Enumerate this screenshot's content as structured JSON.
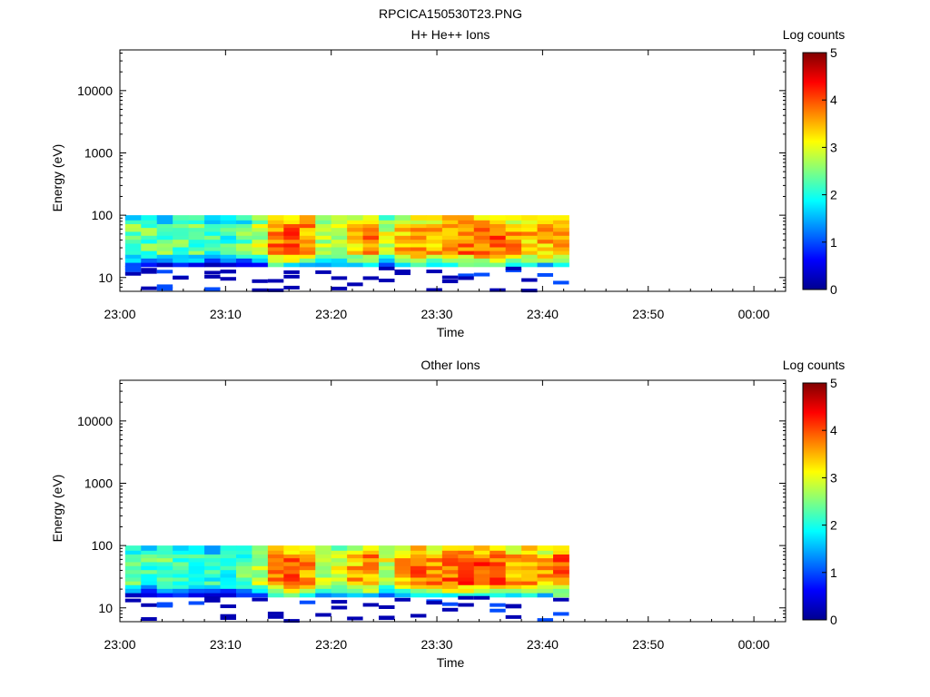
{
  "figure_title": "RPCICA150530T23.PNG",
  "colors": {
    "colormap": [
      "#00008f",
      "#0000ff",
      "#0080ff",
      "#00ffff",
      "#80ff80",
      "#ffff00",
      "#ff8000",
      "#ff0000",
      "#800000"
    ],
    "axis": "#000000",
    "background": "#ffffff"
  },
  "chart_data": [
    {
      "type": "heatmap",
      "title": "H+ He++ Ions",
      "xlabel": "Time",
      "ylabel": "Energy (eV)",
      "x_ticks": [
        "23:00",
        "23:10",
        "23:20",
        "23:30",
        "23:40",
        "23:50",
        "00:00"
      ],
      "x_range_minutes": [
        0,
        63
      ],
      "y_scale": "log",
      "y_ticks": [
        "10",
        "100",
        "1000",
        "10000"
      ],
      "ylim": [
        6,
        45000
      ],
      "colorbar": {
        "label": "Log counts",
        "ticks": [
          "0",
          "1",
          "2",
          "3",
          "4",
          "5"
        ],
        "range": [
          0,
          5
        ]
      },
      "data_span_minutes": [
        0.5,
        42.5
      ],
      "time_bins": 28,
      "energy_levels_eV": [
        16,
        19,
        22,
        25,
        29,
        33,
        38,
        44,
        51,
        59,
        68,
        78,
        90
      ],
      "column_mean_log_counts": [
        2.3,
        2.2,
        2.2,
        2.2,
        2.2,
        2.0,
        2.0,
        2.2,
        2.6,
        3.6,
        3.7,
        3.5,
        2.6,
        2.8,
        3.2,
        3.5,
        2.7,
        3.3,
        3.5,
        3.4,
        3.6,
        3.7,
        3.7,
        3.7,
        3.4,
        3.3,
        3.3,
        3.6
      ],
      "sparse_low_energy_counts": "isolated 0-1 counts between 6 and 15 eV"
    },
    {
      "type": "heatmap",
      "title": "Other Ions",
      "xlabel": "Time",
      "ylabel": "Energy (eV)",
      "x_ticks": [
        "23:00",
        "23:10",
        "23:20",
        "23:30",
        "23:40",
        "23:50",
        "00:00"
      ],
      "x_range_minutes": [
        0,
        63
      ],
      "y_scale": "log",
      "y_ticks": [
        "10",
        "100",
        "1000",
        "10000"
      ],
      "ylim": [
        6,
        45000
      ],
      "colorbar": {
        "label": "Log counts",
        "ticks": [
          "0",
          "1",
          "2",
          "3",
          "4",
          "5"
        ],
        "range": [
          0,
          5
        ]
      },
      "data_span_minutes": [
        0.5,
        42.5
      ],
      "time_bins": 28,
      "energy_levels_eV": [
        16,
        19,
        22,
        25,
        29,
        33,
        38,
        44,
        51,
        59,
        68,
        78,
        90
      ],
      "column_mean_log_counts": [
        2.2,
        2.1,
        2.2,
        2.1,
        2.1,
        1.9,
        2.0,
        2.1,
        2.6,
        3.6,
        3.7,
        3.5,
        2.7,
        2.9,
        3.3,
        3.5,
        2.8,
        3.4,
        3.6,
        3.5,
        3.7,
        3.8,
        3.8,
        3.8,
        3.5,
        3.4,
        3.4,
        3.7
      ],
      "sparse_low_energy_counts": "isolated 0-1 counts between 6 and 15 eV"
    }
  ]
}
